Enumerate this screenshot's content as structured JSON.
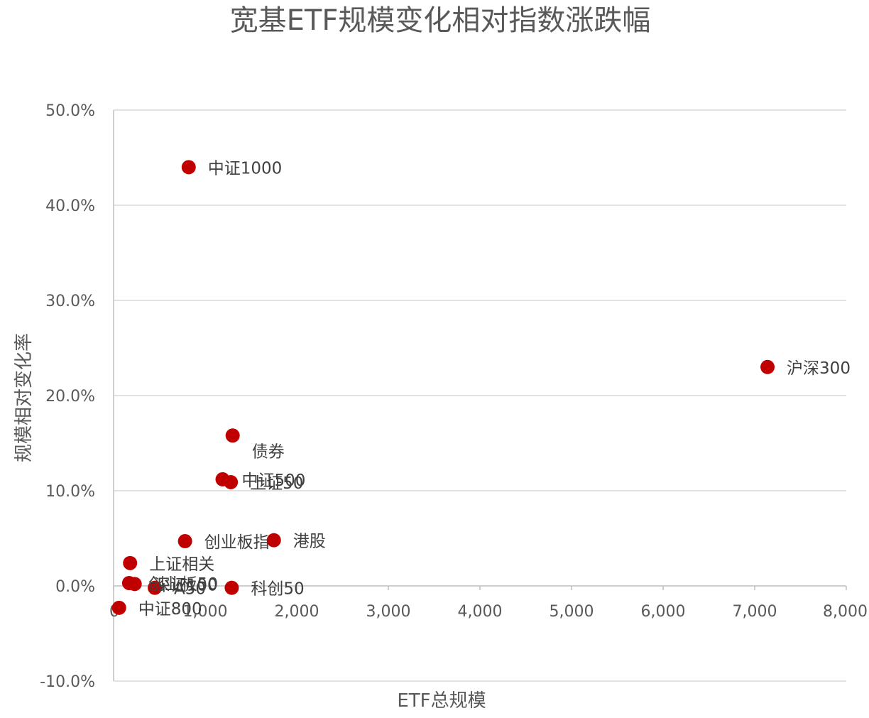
{
  "chart_data": {
    "type": "scatter",
    "title": "宽基ETF规模变化相对指数涨跌幅",
    "xlabel": "ETF总规模",
    "ylabel": "规模相对变化率",
    "xlim": [
      0,
      8000
    ],
    "ylim": [
      -0.1,
      0.5
    ],
    "x_ticks": [
      0,
      1000,
      2000,
      3000,
      4000,
      5000,
      6000,
      7000,
      8000
    ],
    "x_tick_labels": [
      "0",
      "1,000",
      "2,000",
      "3,000",
      "4,000",
      "5,000",
      "6,000",
      "7,000",
      "8,000"
    ],
    "y_ticks": [
      -0.1,
      0.0,
      0.1,
      0.2,
      0.3,
      0.4,
      0.5
    ],
    "y_tick_labels": [
      "-10.0%",
      "0.0%",
      "10.0%",
      "20.0%",
      "30.0%",
      "40.0%",
      "50.0%"
    ],
    "gridlines": "horizontal",
    "legend": "none",
    "marker_color": "#c00000",
    "points": [
      {
        "label": "中证1000",
        "x": 820,
        "y": 0.44
      },
      {
        "label": "沪深300",
        "x": 7140,
        "y": 0.23
      },
      {
        "label": "债券",
        "x": 1300,
        "y": 0.158
      },
      {
        "label": "中证500",
        "x": 1190,
        "y": 0.112
      },
      {
        "label": "上证50",
        "x": 1280,
        "y": 0.109
      },
      {
        "label": "创业板指",
        "x": 780,
        "y": 0.047
      },
      {
        "label": "港股",
        "x": 1750,
        "y": 0.048
      },
      {
        "label": "上证相关",
        "x": 180,
        "y": 0.024
      },
      {
        "label": "创业板50",
        "x": 170,
        "y": 0.003
      },
      {
        "label": "深证100",
        "x": 230,
        "y": 0.002
      },
      {
        "label": "A50",
        "x": 450,
        "y": -0.002
      },
      {
        "label": "科创50",
        "x": 1290,
        "y": -0.002
      },
      {
        "label": "中证800",
        "x": 60,
        "y": -0.023
      }
    ]
  }
}
